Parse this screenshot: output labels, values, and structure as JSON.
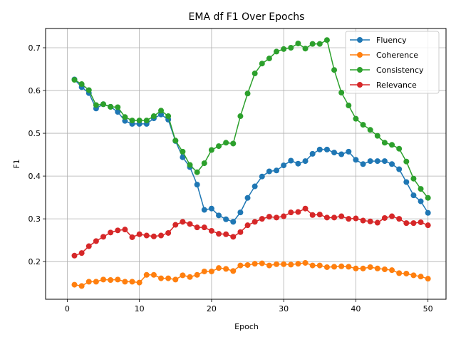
{
  "chart_data": {
    "type": "line",
    "title": "EMA df F1 Over Epochs",
    "xlabel": "Epoch",
    "ylabel": "F1",
    "xlim": [
      -3.0,
      52.5
    ],
    "ylim": [
      0.112,
      0.745
    ],
    "x_ticks": [
      0,
      10,
      20,
      30,
      40,
      50
    ],
    "y_ticks": [
      0.2,
      0.3,
      0.4,
      0.5,
      0.6,
      0.7
    ],
    "y_tick_labels": [
      "0.2",
      "0.3",
      "0.4",
      "0.5",
      "0.6",
      "0.7"
    ],
    "grid": true,
    "legend_position": "top-right",
    "x": [
      1,
      2,
      3,
      4,
      5,
      6,
      7,
      8,
      9,
      10,
      11,
      12,
      13,
      14,
      15,
      16,
      17,
      18,
      19,
      20,
      21,
      22,
      23,
      24,
      25,
      26,
      27,
      28,
      29,
      30,
      31,
      32,
      33,
      34,
      35,
      36,
      37,
      38,
      39,
      40,
      41,
      42,
      43,
      44,
      45,
      46,
      47,
      48,
      49,
      50
    ],
    "series": [
      {
        "name": "Fluency",
        "color": "#1f77b4",
        "values": [
          0.626,
          0.608,
          0.594,
          0.558,
          0.568,
          0.562,
          0.55,
          0.529,
          0.522,
          0.522,
          0.522,
          0.535,
          0.544,
          0.532,
          0.482,
          0.444,
          0.421,
          0.38,
          0.321,
          0.324,
          0.308,
          0.299,
          0.293,
          0.315,
          0.349,
          0.376,
          0.399,
          0.411,
          0.413,
          0.425,
          0.436,
          0.429,
          0.435,
          0.452,
          0.462,
          0.462,
          0.455,
          0.451,
          0.457,
          0.438,
          0.428,
          0.435,
          0.435,
          0.435,
          0.428,
          0.416,
          0.386,
          0.355,
          0.341,
          0.314
        ]
      },
      {
        "name": "Coherence",
        "color": "#ff7f0e",
        "values": [
          0.146,
          0.143,
          0.153,
          0.153,
          0.158,
          0.157,
          0.158,
          0.153,
          0.153,
          0.151,
          0.169,
          0.169,
          0.161,
          0.161,
          0.158,
          0.168,
          0.164,
          0.169,
          0.177,
          0.177,
          0.185,
          0.183,
          0.178,
          0.191,
          0.192,
          0.195,
          0.196,
          0.191,
          0.194,
          0.194,
          0.193,
          0.195,
          0.197,
          0.191,
          0.191,
          0.187,
          0.188,
          0.189,
          0.188,
          0.184,
          0.184,
          0.187,
          0.184,
          0.182,
          0.18,
          0.173,
          0.172,
          0.168,
          0.165,
          0.16
        ]
      },
      {
        "name": "Consistency",
        "color": "#2ca02c",
        "values": [
          0.625,
          0.615,
          0.601,
          0.566,
          0.568,
          0.562,
          0.561,
          0.538,
          0.53,
          0.53,
          0.53,
          0.54,
          0.553,
          0.54,
          0.483,
          0.457,
          0.426,
          0.409,
          0.43,
          0.461,
          0.47,
          0.478,
          0.476,
          0.54,
          0.593,
          0.64,
          0.663,
          0.675,
          0.691,
          0.697,
          0.7,
          0.71,
          0.698,
          0.709,
          0.709,
          0.718,
          0.648,
          0.595,
          0.565,
          0.534,
          0.52,
          0.508,
          0.494,
          0.478,
          0.473,
          0.464,
          0.434,
          0.394,
          0.37,
          0.349
        ]
      },
      {
        "name": "Relevance",
        "color": "#d62728",
        "values": [
          0.214,
          0.22,
          0.236,
          0.248,
          0.258,
          0.268,
          0.273,
          0.275,
          0.257,
          0.264,
          0.261,
          0.259,
          0.261,
          0.267,
          0.286,
          0.293,
          0.288,
          0.28,
          0.28,
          0.272,
          0.265,
          0.264,
          0.258,
          0.269,
          0.285,
          0.293,
          0.3,
          0.305,
          0.303,
          0.306,
          0.315,
          0.316,
          0.324,
          0.309,
          0.31,
          0.303,
          0.303,
          0.306,
          0.3,
          0.301,
          0.296,
          0.294,
          0.291,
          0.302,
          0.306,
          0.3,
          0.29,
          0.29,
          0.292,
          0.285
        ]
      }
    ]
  }
}
